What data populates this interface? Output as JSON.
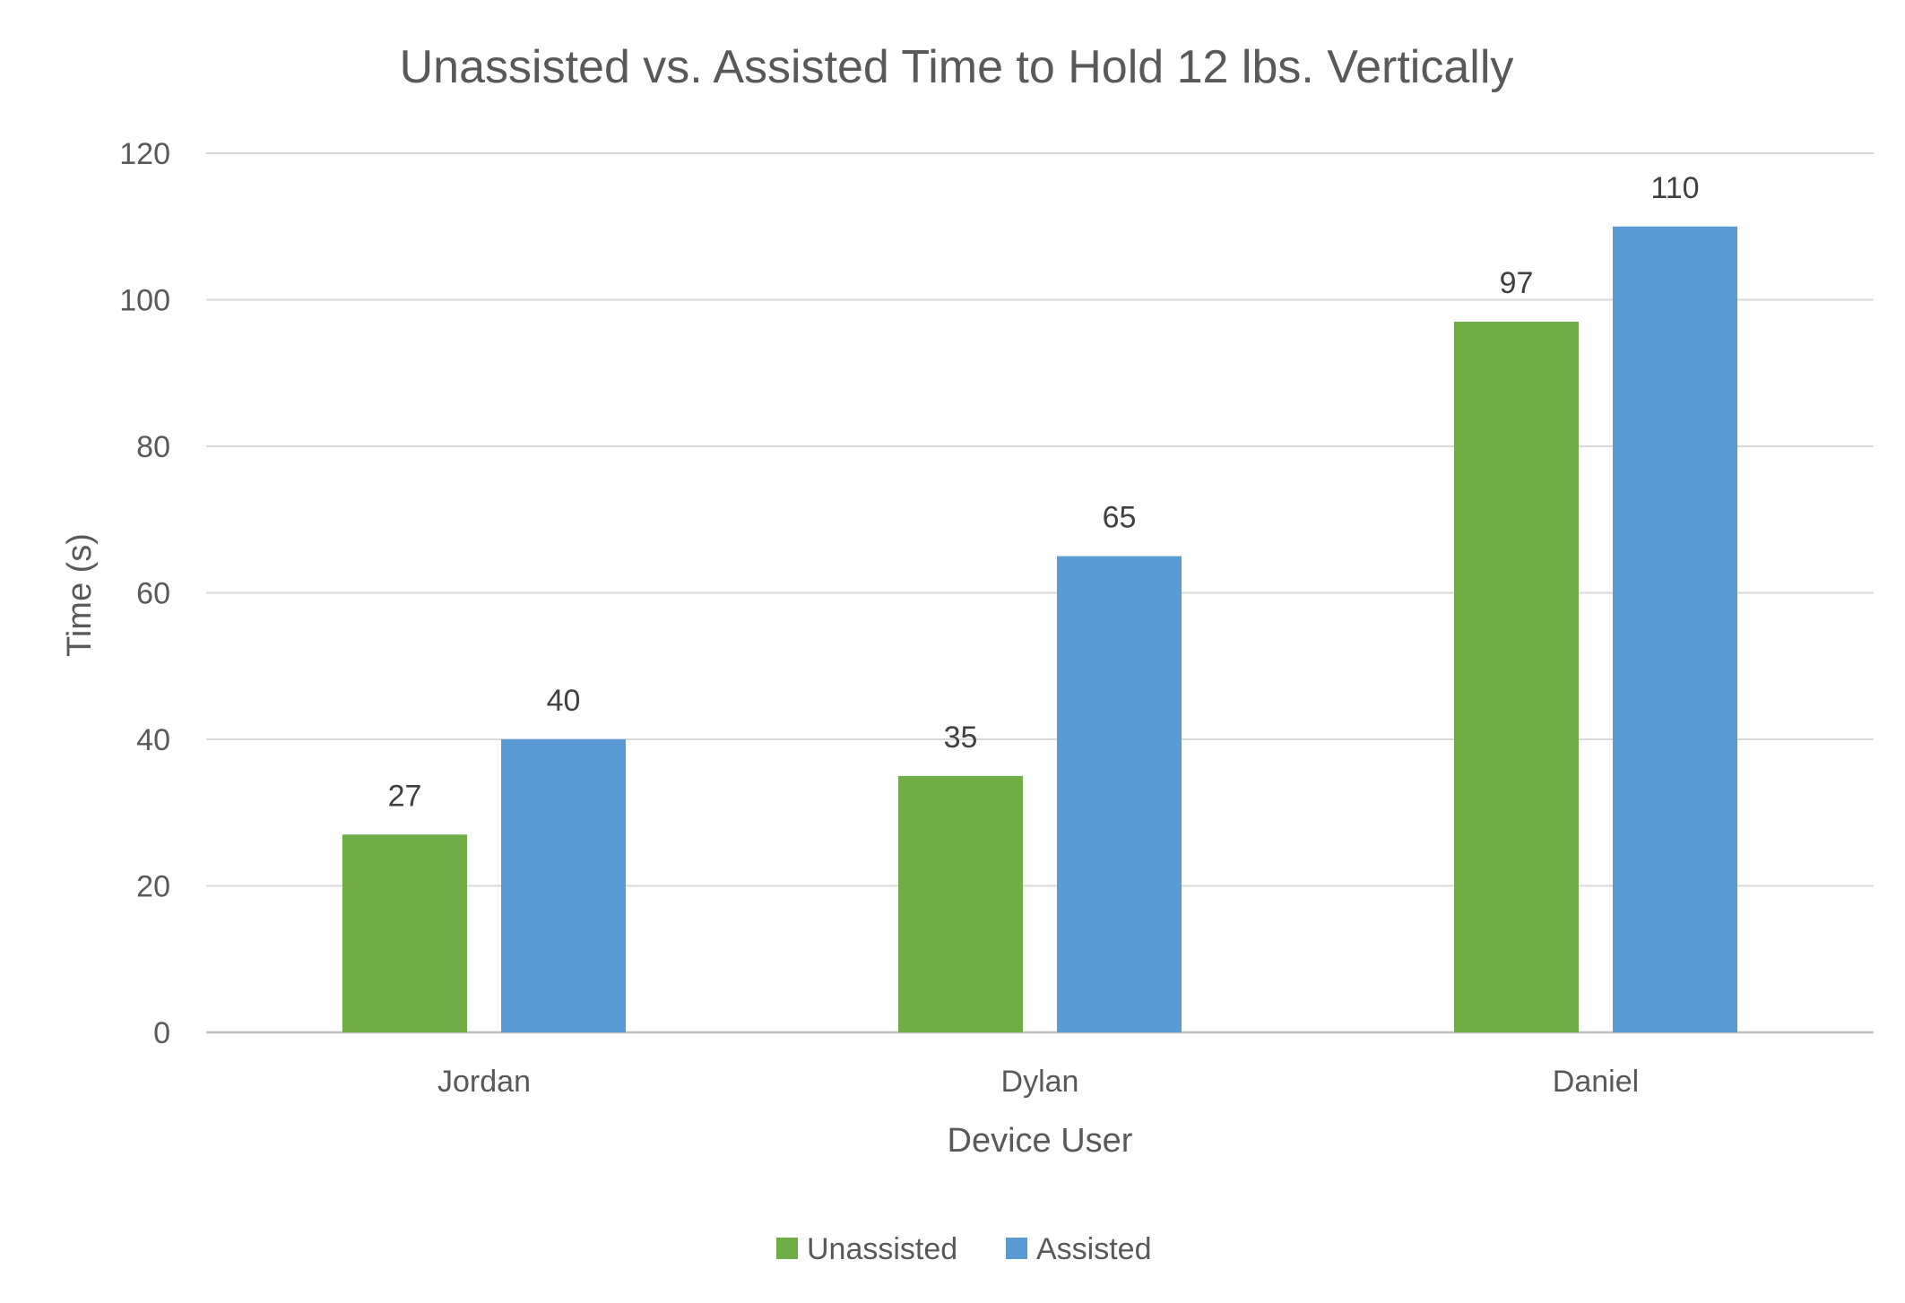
{
  "chart_data": {
    "type": "bar",
    "title": "Unassisted vs. Assisted Time to Hold 12 lbs. Vertically",
    "xlabel": "Device User",
    "ylabel": "Time (s)",
    "categories": [
      "Jordan",
      "Dylan",
      "Daniel"
    ],
    "series": [
      {
        "name": "Unassisted",
        "values": [
          27,
          35,
          97
        ],
        "color": "#70ad47"
      },
      {
        "name": "Assisted",
        "values": [
          40,
          65,
          110
        ],
        "color": "#5b9bd5"
      }
    ],
    "ylim": [
      0,
      120
    ],
    "yticks": [
      0,
      20,
      40,
      60,
      80,
      100,
      120
    ],
    "grid": true,
    "data_labels": true,
    "legend": "bottom-center"
  }
}
